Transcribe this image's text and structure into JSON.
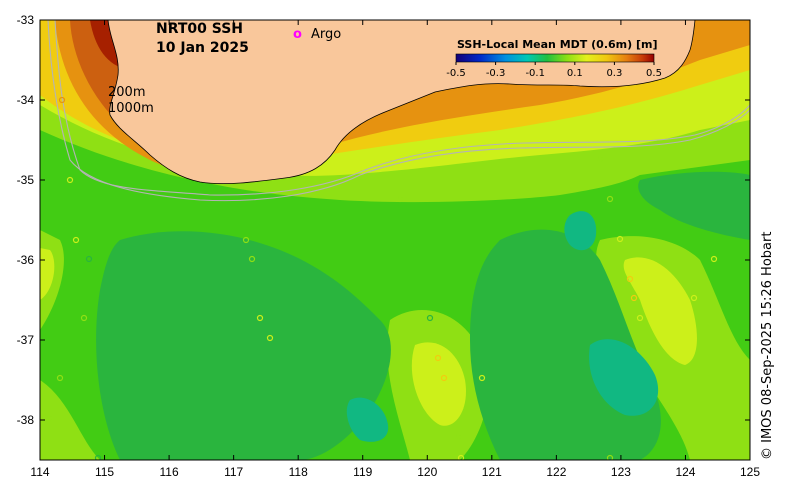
{
  "map": {
    "title_line1": "NRT00 SSH",
    "title_line2": "10 Jan 2025",
    "legend_argo_symbol": "o",
    "legend_argo_label": "Argo",
    "isobath_labels": [
      "200m",
      "1000m"
    ],
    "credit": "© IMOS 08-Sep-2025 15:26 Hobart",
    "lon_ticks": [
      "114",
      "115",
      "116",
      "117",
      "118",
      "119",
      "120",
      "121",
      "122",
      "123",
      "124",
      "125"
    ],
    "lat_ticks": [
      "-33",
      "-34",
      "-35",
      "-36",
      "-37",
      "-38"
    ],
    "lon_range": [
      114,
      125
    ],
    "lat_range": [
      -38.5,
      -33
    ],
    "colorbar": {
      "title": "SSH-Local Mean MDT (0.6m) [m]",
      "ticks": [
        "-0.5",
        "-0.3",
        "-0.1",
        "0.1",
        "0.3",
        "0.5"
      ],
      "range": [
        -0.5,
        0.5
      ]
    },
    "colors": {
      "land": "#f9c79b",
      "ssh_level_-0.15": "#11b882",
      "ssh_level_-0.05": "#2ab53e",
      "ssh_level_0.05": "#42cc14",
      "ssh_level_0.15": "#8fe014",
      "ssh_level_0.25": "#ccf01a",
      "ssh_level_0.35": "#f0cc10",
      "ssh_level_0.45": "#e69210",
      "ssh_level_0.55": "#cc6010",
      "ssh_level_0.65": "#a62000",
      "argo": "#ff00ff",
      "isobath": "#b4b4b4"
    }
  }
}
